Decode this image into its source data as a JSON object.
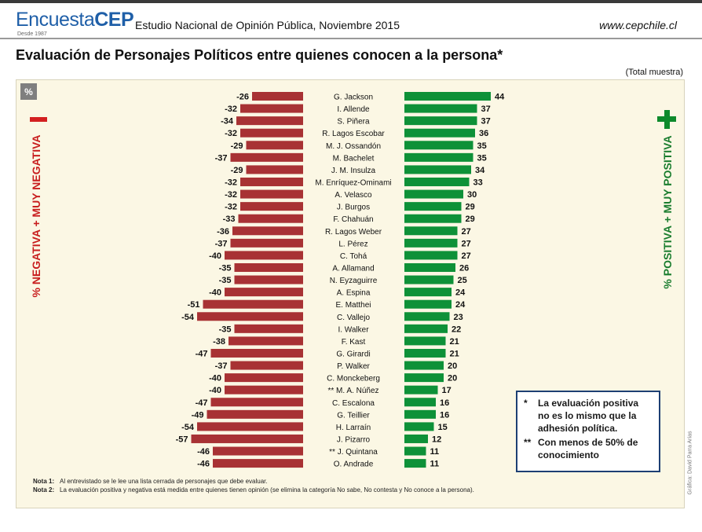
{
  "header": {
    "brand_light": "Encuesta",
    "brand_bold": "CEP",
    "since": "Desde 1987",
    "subtitle": "Estudio Nacional de Opinión Pública, Noviembre 2015",
    "site": "www.cepchile.cl"
  },
  "title": "Evaluación de Personajes Políticos entre quienes conocen a la persona*",
  "total_note": "(Total muestra)",
  "percent_badge": "%",
  "colors": {
    "negative": "#a83234",
    "positive": "#0e9138",
    "negative_text": "#c81e1e",
    "positive_text": "#1a7d2e",
    "box_border": "#1d3f73"
  },
  "chart_data": {
    "type": "bar",
    "orientation": "horizontal-diverging",
    "categories": [
      "G. Jackson",
      "I. Allende",
      "S. Piñera",
      "R. Lagos Escobar",
      "M. J. Ossandón",
      "M. Bachelet",
      "J. M. Insulza",
      "M. Enríquez-Ominami",
      "A. Velasco",
      "J. Burgos",
      "F. Chahuán",
      "R. Lagos Weber",
      "L. Pérez",
      "C. Tohá",
      "A. Allamand",
      "N. Eyzaguirre",
      "A. Espina",
      "E. Matthei",
      "C. Vallejo",
      "I. Walker",
      "F. Kast",
      "G. Girardi",
      "P. Walker",
      "C. Monckeberg",
      "** M. A. Núñez",
      "C. Escalona",
      "G. Teillier",
      "H. Larraín",
      "J. Pizarro",
      "** J. Quintana",
      "O. Andrade"
    ],
    "series": [
      {
        "name": "% NEGATIVA + MUY NEGATIVA",
        "values": [
          -26,
          -32,
          -34,
          -32,
          -29,
          -37,
          -29,
          -32,
          -32,
          -32,
          -33,
          -36,
          -37,
          -40,
          -35,
          -35,
          -40,
          -51,
          -54,
          -35,
          -38,
          -47,
          -37,
          -40,
          -40,
          -47,
          -49,
          -54,
          -57,
          -46,
          -46
        ]
      },
      {
        "name": "% POSITIVA + MUY POSITIVA",
        "values": [
          44,
          37,
          37,
          36,
          35,
          35,
          34,
          33,
          30,
          29,
          29,
          27,
          27,
          27,
          26,
          25,
          24,
          24,
          23,
          22,
          21,
          21,
          20,
          20,
          17,
          16,
          16,
          15,
          12,
          11,
          11
        ]
      }
    ],
    "legend": "left-and-right-vertical"
  },
  "footnote_box": {
    "items": [
      {
        "mark": "*",
        "text": "La evaluación positiva no es lo mismo que la adhesión política."
      },
      {
        "mark": "**",
        "text": "Con menos de 50% de conocimiento"
      }
    ]
  },
  "notes": [
    {
      "label": "Nota 1:",
      "text": "Al entrevistado se le lee una lista cerrada de personajes que debe evaluar."
    },
    {
      "label": "Nota 2:",
      "text": "La evaluación positiva y negativa está medida entre quienes tienen opinión (se elimina la categoría No sabe, No contesta y No conoce a la persona)."
    }
  ],
  "credit": "Gráfica: David Parra Arias"
}
